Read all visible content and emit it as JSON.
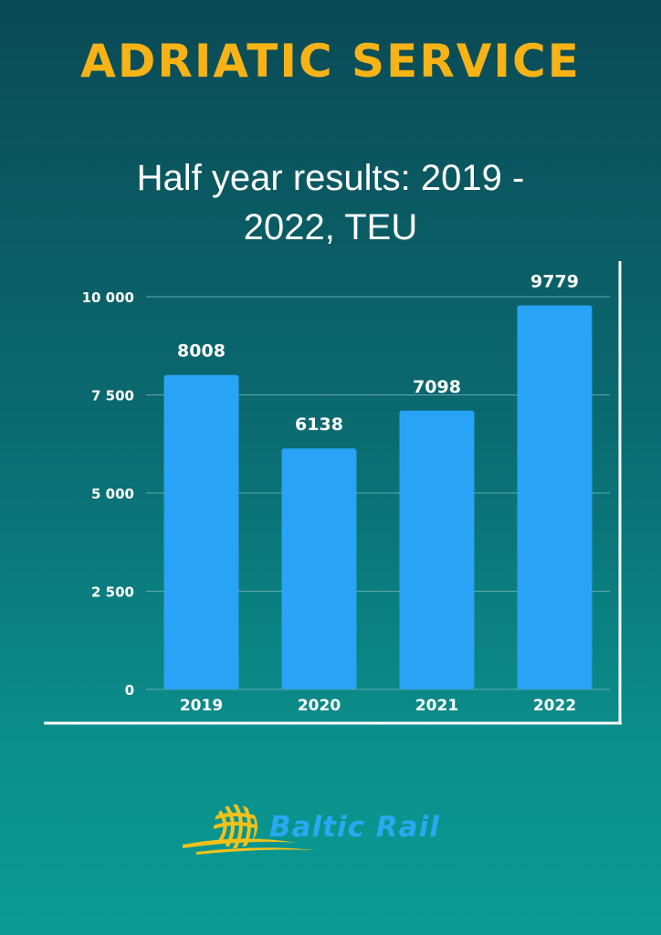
{
  "header": {
    "title": "ADRIATIC SERVICE",
    "subtitle": "Half year results: 2019 - 2022, TEU"
  },
  "chart_data": {
    "type": "bar",
    "title": "Half year results: 2019 - 2022, TEU",
    "categories": [
      "2019",
      "2020",
      "2021",
      "2022"
    ],
    "values": [
      8008,
      6138,
      7098,
      9779
    ],
    "value_labels": [
      "8008",
      "6138",
      "7098",
      "9779"
    ],
    "y_ticks": [
      0,
      2500,
      5000,
      7500,
      10000
    ],
    "y_tick_labels": [
      "0",
      "2 500",
      "5 000",
      "7 500",
      "10 000"
    ],
    "ylim": [
      0,
      10000
    ],
    "grid": true,
    "xlabel": "",
    "ylabel": ""
  },
  "colors": {
    "bar": "#29a3f5",
    "title": "#f7b316",
    "grid": "#5fa9aa",
    "frame": "#ffffff",
    "brand": "#2aa8f0",
    "logo_swoosh": "#f2c21b"
  },
  "footer": {
    "brand": "Baltic Rail",
    "logo_icon": "globe-swoosh-icon"
  }
}
